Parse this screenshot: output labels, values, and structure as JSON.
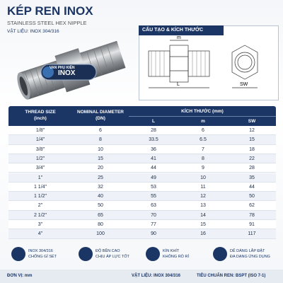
{
  "header": {
    "title": "KÉP REN INOX",
    "subtitle": "STAINLESS STEEL HEX NIPPLE",
    "material": "VẬT LIỆU: INOX 304/316"
  },
  "logo": {
    "top": "VAN PHỤ KIỆN",
    "bottom": "INOX"
  },
  "diagram": {
    "title": "CẤU TẠO & KÍCH THƯỚC",
    "m": "m",
    "L": "L",
    "SW": "SW"
  },
  "table": {
    "headers": [
      "THREAD SIZE",
      "(inch)",
      "NOMINAL DIAMETER",
      "(DN)",
      "KÍCH THƯỚC (mm)"
    ],
    "subheaders": [
      "L",
      "m",
      "SW"
    ],
    "rows": [
      [
        "1/8\"",
        "6",
        "28",
        "6",
        "12"
      ],
      [
        "1/4\"",
        "8",
        "33.5",
        "6.5",
        "15"
      ],
      [
        "3/8\"",
        "10",
        "36",
        "7",
        "18"
      ],
      [
        "1/2\"",
        "15",
        "41",
        "8",
        "22"
      ],
      [
        "3/4\"",
        "20",
        "44",
        "9",
        "28"
      ],
      [
        "1\"",
        "25",
        "49",
        "10",
        "35"
      ],
      [
        "1 1/4\"",
        "32",
        "53",
        "11",
        "44"
      ],
      [
        "1 1/2\"",
        "40",
        "55",
        "12",
        "50"
      ],
      [
        "2\"",
        "50",
        "63",
        "13",
        "62"
      ],
      [
        "2 1/2\"",
        "65",
        "70",
        "14",
        "78"
      ],
      [
        "3\"",
        "80",
        "77",
        "15",
        "91"
      ],
      [
        "4\"",
        "100",
        "90",
        "16",
        "117"
      ]
    ]
  },
  "features": [
    [
      "INOX 304/316",
      "CHỐNG GỈ SÉT"
    ],
    [
      "ĐỘ BỀN CAO",
      "CHỊU ÁP LỰC TỐT"
    ],
    [
      "KÍN KHÍT",
      "KHÔNG RÒ RỈ"
    ],
    [
      "DỄ DÀNG LẮP ĐẶT",
      "ĐA DẠNG ỨNG DỤNG"
    ]
  ],
  "footer": [
    "ĐƠN VỊ: mm",
    "VẬT LIỆU: INOX 304/316",
    "TIÊU CHUẨN REN: BSPT (ISO 7-1)"
  ]
}
